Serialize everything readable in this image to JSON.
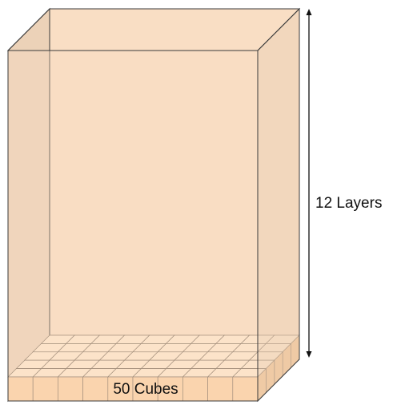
{
  "labels": {
    "height": "12 Layers",
    "base": "50 Cubes"
  },
  "prism": {
    "layers": 12,
    "base_columns": 10,
    "base_rows": 5
  },
  "colors": {
    "box_fill": "#f9dec4",
    "box_side": "#ecd2b8",
    "box_stroke": "#3a3a3a",
    "cube_front": "#fbcfa3",
    "cube_top": "#fde6cd",
    "cube_side": "#f2c08f",
    "cube_stroke": "#7a6a5a",
    "arrow": "#111111"
  }
}
